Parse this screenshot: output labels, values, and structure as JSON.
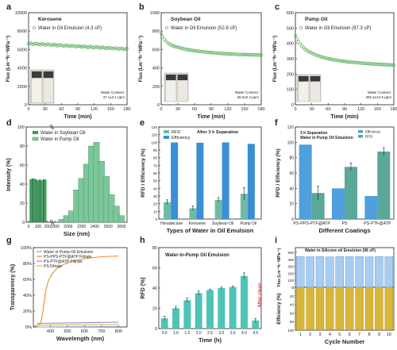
{
  "colors": {
    "green": "#3a9a54",
    "green_marker": "#4aa84f",
    "teal": "#3c9c94",
    "blue": "#3a8fd4",
    "orange": "#f08a24",
    "steel": "#8aa6c7",
    "purple": "#9d86c6",
    "gold": "#d8b63a",
    "lightblue": "#a8cdf0"
  },
  "chart_data": [
    {
      "panel": "a",
      "type": "scatter",
      "title": "Kerosene",
      "xlabel": "Time (min)",
      "ylabel": "Flux (Lm⁻²h⁻¹MPa⁻¹)",
      "xlim": [
        0,
        180
      ],
      "ylim": [
        0,
        10000
      ],
      "xticks": [
        "0",
        "30",
        "60",
        "90",
        "120",
        "150",
        "180"
      ],
      "yticks": [
        "0",
        "2000",
        "4000",
        "6000",
        "8000",
        "10000"
      ],
      "legend": "Water in Oil Emulsion (4.3 cP)",
      "inset_title": "Water Content:",
      "inset_value": "47.1±3.1 ppm",
      "series": [
        {
          "name": "Water in Oil Emulsion (4.3 cP)",
          "x_start": 0,
          "x_end": 180,
          "n": 60,
          "y_start": 6650,
          "y_end": 6050
        }
      ]
    },
    {
      "panel": "b",
      "type": "scatter",
      "title": "Soybean Oil",
      "xlabel": "Time (min)",
      "ylabel": "Flux (Lm⁻²h⁻¹MPa⁻¹)",
      "xlim": [
        0,
        180
      ],
      "ylim": [
        0,
        1000
      ],
      "xticks": [
        "0",
        "30",
        "60",
        "90",
        "120",
        "150",
        "180"
      ],
      "yticks": [
        "0",
        "200",
        "400",
        "600",
        "800",
        "1000"
      ],
      "legend": "Water in Oil Emulsion (52.8 cP)",
      "inset_title": "Water Content:",
      "inset_value": "28.0±5.2 ppm",
      "series": [
        {
          "name": "Water in Oil Emulsion (52.8 cP)",
          "points": [
            [
              0,
              770
            ],
            [
              3,
              740
            ],
            [
              6,
              710
            ],
            [
              9,
              690
            ],
            [
              12,
              670
            ],
            [
              15,
              660
            ],
            [
              18,
              650
            ],
            [
              21,
              640
            ],
            [
              24,
              635
            ],
            [
              27,
              630
            ],
            [
              30,
              625
            ],
            [
              33,
              620
            ],
            [
              36,
              615
            ],
            [
              39,
              610
            ],
            [
              42,
              605
            ],
            [
              45,
              600
            ],
            [
              48,
              598
            ],
            [
              51,
              595
            ],
            [
              54,
              592
            ],
            [
              57,
              590
            ],
            [
              60,
              588
            ],
            [
              63,
              585
            ],
            [
              66,
              582
            ],
            [
              69,
              580
            ],
            [
              72,
              578
            ],
            [
              75,
              576
            ],
            [
              78,
              574
            ],
            [
              81,
              572
            ],
            [
              84,
              570
            ],
            [
              87,
              568
            ],
            [
              90,
              566
            ],
            [
              93,
              565
            ],
            [
              96,
              563
            ],
            [
              99,
              562
            ],
            [
              102,
              560
            ],
            [
              105,
              559
            ],
            [
              108,
              557
            ],
            [
              111,
              556
            ],
            [
              114,
              555
            ],
            [
              117,
              554
            ],
            [
              120,
              553
            ],
            [
              123,
              552
            ],
            [
              126,
              551
            ],
            [
              129,
              550
            ],
            [
              132,
              549
            ],
            [
              135,
              548
            ],
            [
              138,
              547
            ],
            [
              141,
              546
            ],
            [
              144,
              546
            ],
            [
              147,
              545
            ],
            [
              150,
              545
            ],
            [
              153,
              544
            ],
            [
              156,
              544
            ],
            [
              159,
              543
            ],
            [
              162,
              543
            ],
            [
              165,
              542
            ],
            [
              168,
              542
            ],
            [
              171,
              541
            ],
            [
              174,
              541
            ],
            [
              177,
              540
            ],
            [
              180,
              540
            ]
          ]
        }
      ]
    },
    {
      "panel": "c",
      "type": "scatter",
      "title": "Pump Oil",
      "xlabel": "Time (min)",
      "ylabel": "Flux (Lm⁻²h⁻¹MPa⁻¹)",
      "xlim": [
        0,
        180
      ],
      "ylim": [
        0,
        600
      ],
      "xticks": [
        "0",
        "30",
        "60",
        "90",
        "120",
        "150",
        "180"
      ],
      "yticks": [
        "0",
        "100",
        "200",
        "300",
        "400",
        "500",
        "600"
      ],
      "legend": "Water in Oil Emulsion (97.3 cP)",
      "inset_title": "Water Content:",
      "inset_value": "392.4±12.6 ppm",
      "series": [
        {
          "name": "Water in Oil Emulsion (97.3 cP)",
          "points": [
            [
              0,
              450
            ],
            [
              3,
              430
            ],
            [
              6,
              410
            ],
            [
              9,
              395
            ],
            [
              12,
              382
            ],
            [
              15,
              372
            ],
            [
              18,
              362
            ],
            [
              21,
              355
            ],
            [
              24,
              348
            ],
            [
              27,
              342
            ],
            [
              30,
              337
            ],
            [
              33,
              332
            ],
            [
              36,
              327
            ],
            [
              39,
              323
            ],
            [
              42,
              319
            ],
            [
              45,
              315
            ],
            [
              48,
              312
            ],
            [
              51,
              309
            ],
            [
              54,
              306
            ],
            [
              57,
              303
            ],
            [
              60,
              300
            ],
            [
              63,
              298
            ],
            [
              66,
              296
            ],
            [
              69,
              294
            ],
            [
              72,
              292
            ],
            [
              75,
              290
            ],
            [
              78,
              288
            ],
            [
              81,
              287
            ],
            [
              84,
              285
            ],
            [
              87,
              284
            ],
            [
              90,
              283
            ],
            [
              93,
              281
            ],
            [
              96,
              280
            ],
            [
              99,
              279
            ],
            [
              102,
              278
            ],
            [
              105,
              277
            ],
            [
              108,
              276
            ],
            [
              111,
              275
            ],
            [
              114,
              274
            ],
            [
              117,
              273
            ],
            [
              120,
              272
            ],
            [
              123,
              271
            ],
            [
              126,
              270
            ],
            [
              129,
              269
            ],
            [
              132,
              268
            ],
            [
              135,
              268
            ],
            [
              138,
              267
            ],
            [
              141,
              266
            ],
            [
              144,
              265
            ],
            [
              147,
              265
            ],
            [
              150,
              264
            ],
            [
              153,
              263
            ],
            [
              156,
              263
            ],
            [
              159,
              262
            ],
            [
              162,
              262
            ],
            [
              165,
              261
            ],
            [
              168,
              261
            ],
            [
              171,
              260
            ],
            [
              174,
              260
            ],
            [
              177,
              259
            ],
            [
              180,
              258
            ]
          ]
        }
      ]
    },
    {
      "panel": "d",
      "type": "bar",
      "xlabel": "Size (nm)",
      "ylabel": "Intensity (%)",
      "ylim": [
        0,
        100
      ],
      "yticks": [
        "0",
        "20",
        "40",
        "60",
        "80",
        "100"
      ],
      "xticks_left": [
        "0",
        "100",
        "200"
      ],
      "xticks_right": [
        "1800",
        "2000",
        "2200",
        "2400",
        "2600",
        "2800"
      ],
      "series": [
        {
          "name": "Water in Soybean Oil",
          "x": [
            20,
            40,
            60,
            80,
            100,
            120,
            140,
            160,
            180
          ],
          "values": [
            45,
            46,
            46,
            45,
            44,
            45,
            44,
            45,
            45
          ]
        },
        {
          "name": "Water in Pump Oil",
          "x": [
            1900,
            1975,
            2050,
            2125,
            2200,
            2275,
            2350,
            2425,
            2500,
            2575,
            2650,
            2725,
            2800
          ],
          "values": [
            3,
            7,
            12,
            34,
            46,
            61,
            80,
            84,
            64,
            48,
            29,
            17,
            7
          ]
        }
      ]
    },
    {
      "panel": "e",
      "type": "bar",
      "title": "After 3 h Separation",
      "xlabel": "Types of Water in Oil Emulsion",
      "ylabel": "RFD / Efficiency (%)",
      "ylim": [
        0,
        120
      ],
      "yticks": [
        "0",
        "10",
        "20",
        "30",
        "40",
        "50",
        "60",
        "70",
        "80",
        "90",
        "100",
        "110",
        "120"
      ],
      "categories": [
        "Hexadecane",
        "Kerosene",
        "Soybean Oil",
        "Pump Oil"
      ],
      "series": [
        {
          "name": "RFD",
          "values": [
            22,
            14,
            25,
            33
          ],
          "errors": [
            3,
            3,
            3,
            8
          ]
        },
        {
          "name": "Efficiency",
          "values": [
            99.8,
            99.5,
            99.9,
            98
          ]
        }
      ]
    },
    {
      "panel": "f",
      "type": "bar",
      "title": "3 h Separation",
      "subtitle": "Water in Pump Oil Emulsion",
      "xlabel": "Different Coatings",
      "ylabel": "RFD / Efficiency (%)",
      "ylim": [
        0,
        120
      ],
      "yticks": [
        "0",
        "20",
        "40",
        "60",
        "80",
        "100",
        "120"
      ],
      "categories": [
        "PS-PPS-PTF@ATP",
        "PS",
        "PS-PTF@ATP"
      ],
      "series": [
        {
          "name": "Efficiency",
          "values": [
            97,
            40,
            30
          ]
        },
        {
          "name": "RFD",
          "values": [
            34,
            68,
            88
          ],
          "errors": [
            9,
            5,
            5
          ]
        }
      ]
    },
    {
      "panel": "g",
      "type": "line",
      "xlabel": "Wavelength (nm)",
      "ylabel": "Transparency (%)",
      "xlim": [
        300,
        850
      ],
      "ylim": [
        0,
        100
      ],
      "xticks": [
        "400",
        "500",
        "600",
        "700",
        "800"
      ],
      "yticks": [
        "0%",
        "20%",
        "40%",
        "60%",
        "80%",
        "100%"
      ],
      "series": [
        {
          "name": "Water in Pump Oil Emulsion",
          "points": [
            [
              320,
              0
            ],
            [
              800,
              0.5
            ]
          ]
        },
        {
          "name": "PS-PPS-PTF@ATP Filtrate",
          "points": [
            [
              300,
              1
            ],
            [
              330,
              2
            ],
            [
              345,
              6
            ],
            [
              355,
              18
            ],
            [
              365,
              34
            ],
            [
              375,
              48
            ],
            [
              390,
              59
            ],
            [
              410,
              67
            ],
            [
              440,
              74
            ],
            [
              480,
              79
            ],
            [
              530,
              83
            ],
            [
              600,
              86
            ],
            [
              700,
              88.5
            ],
            [
              800,
              89.5
            ]
          ]
        },
        {
          "name": "PS-PTF@ATP Filtrate",
          "points": [
            [
              320,
              4.5
            ],
            [
              800,
              6
            ]
          ]
        },
        {
          "name": "PS Filtrate",
          "points": [
            [
              320,
              2.5
            ],
            [
              800,
              3
            ]
          ]
        }
      ]
    },
    {
      "panel": "h",
      "type": "bar",
      "title": "Water-in-Pump Oil Emulsion",
      "xlabel": "Time (h)",
      "ylabel": "RFD (%)",
      "ylim": [
        0,
        80
      ],
      "yticks": [
        "0",
        "20",
        "40",
        "60",
        "80"
      ],
      "categories": [
        "0.5",
        "1.0",
        "1.5",
        "2.0",
        "2.5",
        "3.0",
        "3.5",
        "4.0",
        "4.5"
      ],
      "values": [
        10,
        20,
        28,
        35,
        38,
        40,
        41,
        52,
        8
      ],
      "errors": [
        2,
        2,
        2,
        2,
        1,
        1,
        1,
        3,
        2
      ],
      "annotation": "After clean"
    },
    {
      "panel": "i",
      "type": "bar",
      "title": "Water in Silicone oil Emulsion (96 cP)",
      "xlabel": "Cycle Number",
      "ylabel_top": "Flux (Lm⁻²h⁻¹MPa⁻¹)",
      "ylabel_bottom": "Efficiency (%)",
      "ylim_top": [
        0,
        500
      ],
      "yticks_top": [
        "0",
        "100",
        "200",
        "300",
        "400",
        "500"
      ],
      "ylim_bottom": [
        0,
        100
      ],
      "yticks_bottom": [
        "0",
        "20",
        "40",
        "60",
        "80",
        "100"
      ],
      "categories": [
        "1",
        "2",
        "3",
        "4",
        "5",
        "6",
        "7",
        "8",
        "9",
        "10"
      ],
      "flux": [
        440,
        438,
        442,
        436,
        440,
        439,
        441,
        437,
        440,
        438
      ],
      "efficiency": [
        99.5,
        99.5,
        99.5,
        99.5,
        99.5,
        99.5,
        99.5,
        99.5,
        99.5,
        99.5
      ]
    }
  ]
}
